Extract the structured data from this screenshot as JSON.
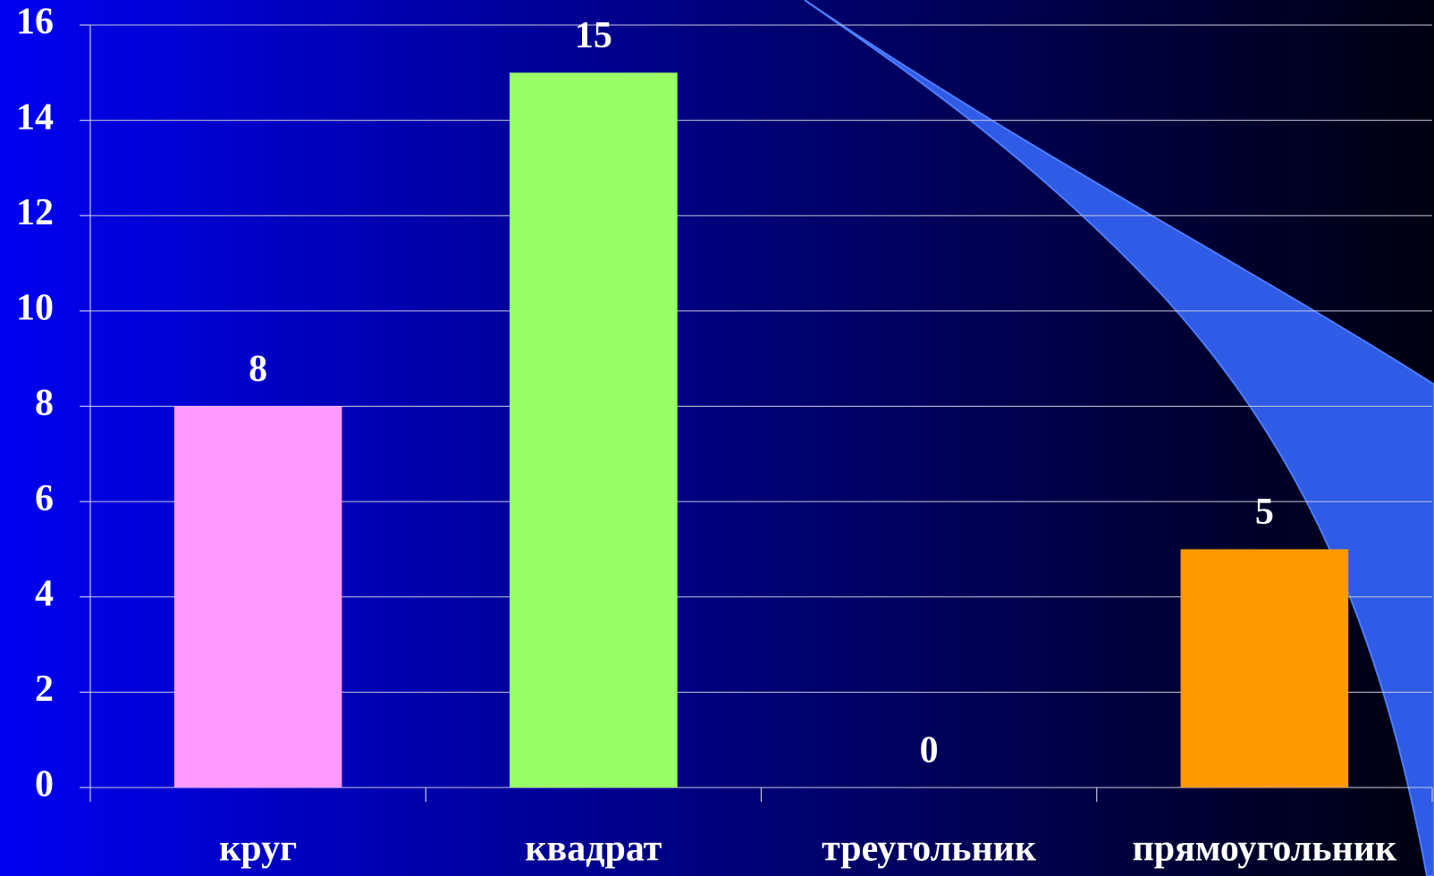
{
  "chart_data": {
    "type": "bar",
    "categories": [
      "круг",
      "квадрат",
      "треугольник",
      "прямоугольник"
    ],
    "values": [
      8,
      15,
      0,
      5
    ],
    "colors": [
      "#ff99ff",
      "#99ff66",
      "#3399ff",
      "#ff9900"
    ],
    "ylim": [
      0,
      16
    ],
    "yticks": [
      0,
      2,
      4,
      6,
      8,
      10,
      12,
      14,
      16
    ],
    "grid": true
  }
}
